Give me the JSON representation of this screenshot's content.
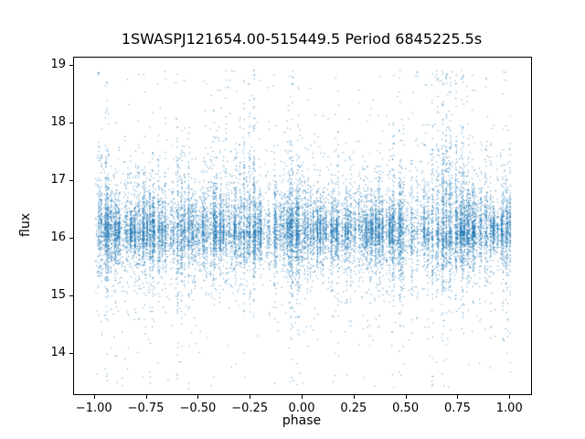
{
  "figure": {
    "background": "#ffffff",
    "spine_color": "#000000"
  },
  "chart_data": {
    "type": "scatter",
    "title": "1SWASPJ121654.00-515449.5 Period 6845225.5s",
    "xlabel": "phase",
    "ylabel": "flux",
    "xlim": [
      -1.1,
      1.1
    ],
    "ylim": [
      13.3,
      19.15
    ],
    "xticks": [
      -1.0,
      -0.75,
      -0.5,
      -0.25,
      0.0,
      0.25,
      0.5,
      0.75,
      1.0
    ],
    "xtick_labels": [
      "−1.00",
      "−0.75",
      "−0.50",
      "−0.25",
      "0.00",
      "0.25",
      "0.50",
      "0.75",
      "1.00"
    ],
    "yticks": [
      14,
      15,
      16,
      17,
      18,
      19
    ],
    "ytick_labels": [
      "14",
      "15",
      "16",
      "17",
      "18",
      "19"
    ],
    "grid": false,
    "legend": null,
    "marker_color": "#1f77b4",
    "marker_size_px": 1,
    "point_generation": {
      "description": "Phase-folded stellar light curve shown over two cycles (phase -1 to 1). Dense band of points centered near flux 16.15 spanning roughly 15.6-16.8, with stripe-like vertical bursts of scatter reaching up toward flux 18-19 and down toward 13.4. Envelope of upward scatter is enhanced near phase 0.7 (equivalently -0.3).",
      "n_points": 18000,
      "seed": 1216,
      "phase_range": [
        -1.0,
        1.0
      ],
      "stripe_count": 300,
      "base_flux": 16.15,
      "core_fraction": 0.55,
      "core_sigma": 0.25,
      "mid_fraction": 0.3,
      "mid_sigma": 0.45,
      "tail_min": 0.4,
      "tail_scale": 0.55,
      "tail_up_prob": 0.55,
      "bump_center_phase": 0.7,
      "bump_sigma": 0.09,
      "bump_strength": 0.8,
      "flux_min": 13.38,
      "flux_max": 18.95
    }
  }
}
